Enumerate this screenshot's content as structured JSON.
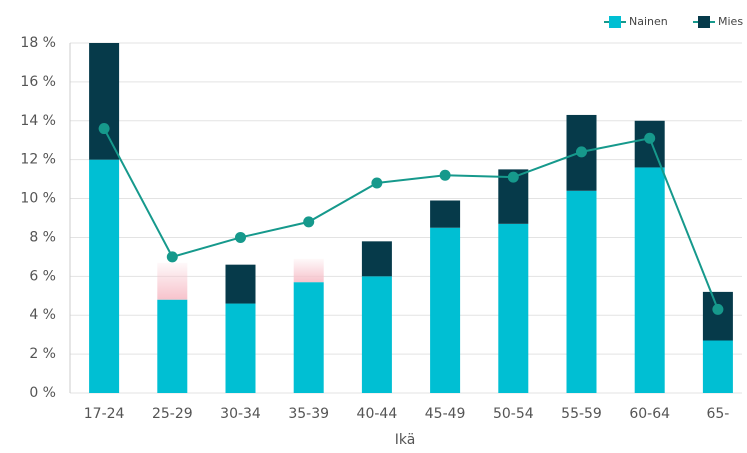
{
  "chart_data": {
    "type": "stacked_bar_line",
    "x_label": "Ikä",
    "categories": [
      "17-24",
      "25-29",
      "30-34",
      "35-39",
      "40-44",
      "45-49",
      "50-54",
      "55-59",
      "60-64",
      "65-"
    ],
    "series": [
      {
        "name": "Nainen",
        "color": "#00bfd3",
        "values": [
          12.0,
          4.8,
          4.6,
          5.7,
          6.0,
          8.5,
          8.7,
          10.4,
          11.6,
          2.7
        ]
      },
      {
        "name": "Mies",
        "color": "#063a4a",
        "values": [
          6.0,
          1.9,
          2.0,
          1.2,
          1.8,
          1.4,
          2.8,
          3.9,
          2.4,
          2.5
        ],
        "colors": [
          "#063a4a",
          "#f7c3cc",
          "#063a4a",
          "#f7c3cc",
          "#063a4a",
          "#063a4a",
          "#063a4a",
          "#063a4a",
          "#063a4a",
          "#063a4a"
        ]
      }
    ],
    "line": {
      "color": "#16998c",
      "values": [
        13.6,
        7.0,
        8.0,
        8.8,
        10.8,
        11.2,
        11.1,
        12.4,
        13.1,
        4.3
      ]
    },
    "ylim": [
      0,
      18
    ],
    "yticks": [
      {
        "value": 0,
        "label": "0 %"
      },
      {
        "value": 2,
        "label": "2 %"
      },
      {
        "value": 4,
        "label": "4 %"
      },
      {
        "value": 6,
        "label": "6 %"
      },
      {
        "value": 8,
        "label": "8 %"
      },
      {
        "value": 10,
        "label": "10 %"
      },
      {
        "value": 12,
        "label": "12 %"
      },
      {
        "value": 14,
        "label": "14 %"
      },
      {
        "value": 16,
        "label": "16 %"
      },
      {
        "value": 18,
        "label": "18 %"
      }
    ],
    "grid": true,
    "legend": "top-right"
  }
}
